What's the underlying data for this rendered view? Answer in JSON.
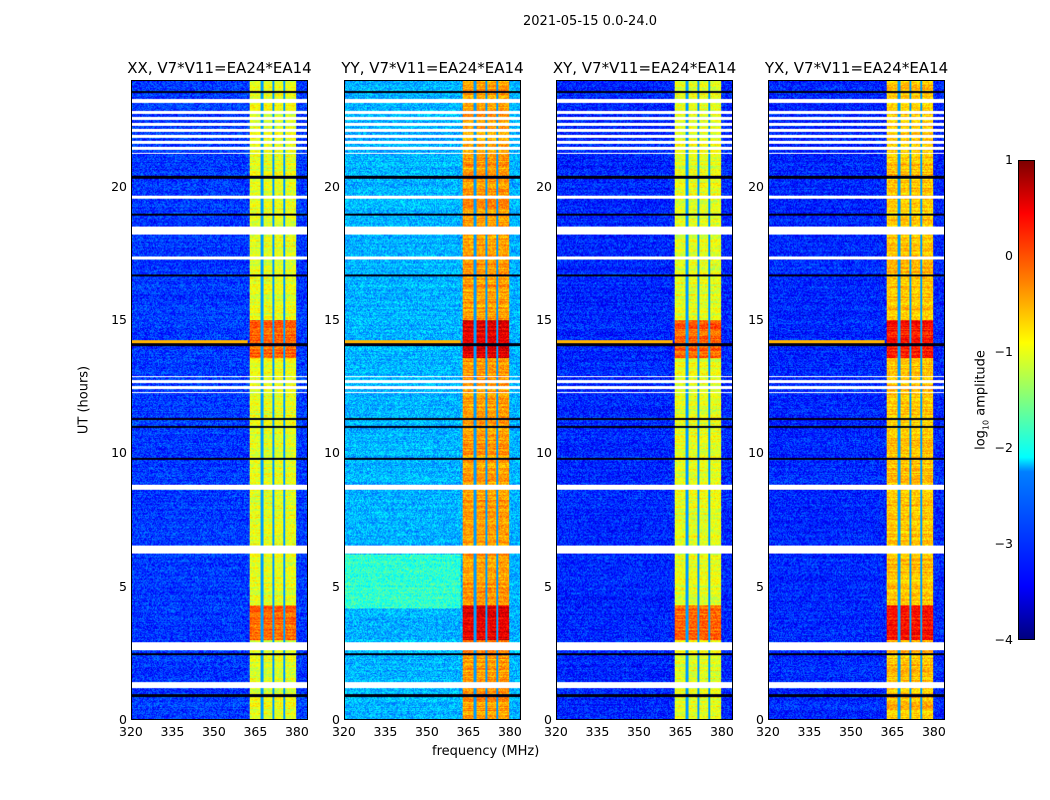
{
  "suptitle": "2021-05-15 0.0-24.0",
  "chart_data": {
    "type": "heatmap",
    "xlabel": "frequency (MHz)",
    "ylabel": "UT (hours)",
    "xlim": [
      320,
      384
    ],
    "ylim": [
      0,
      24
    ],
    "xticks": [
      320,
      335,
      350,
      365,
      380
    ],
    "yticks": [
      0,
      5,
      10,
      15,
      20
    ],
    "colorbar": {
      "label_main": "log",
      "label_sub": "10",
      "label_rest": " amplitude",
      "range": [
        -4,
        1
      ],
      "ticks": [
        1,
        0,
        -1,
        -2,
        -3,
        -4
      ],
      "colormap": "jet"
    },
    "panels": [
      {
        "title": "XX, V7*V11=EA24*EA14",
        "background_level": -3.1,
        "band_level": -1.0
      },
      {
        "title": "YY, V7*V11=EA24*EA14",
        "background_level": -2.5,
        "band_level": -0.4
      },
      {
        "title": "XY, V7*V11=EA24*EA14",
        "background_level": -3.2,
        "band_level": -1.0
      },
      {
        "title": "YX, V7*V11=EA24*EA14",
        "background_level": -3.2,
        "band_level": -0.6
      }
    ],
    "band_mhz": [
      363,
      380
    ],
    "rfi_band_peak_hours": [
      [
        3,
        4.3
      ],
      [
        13.6,
        15
      ]
    ],
    "flagged_hours": [
      [
        1.2,
        1.4
      ],
      [
        2.6,
        2.9
      ],
      [
        6.25,
        6.55
      ],
      [
        8.65,
        8.85
      ],
      [
        12.3,
        12.9
      ],
      [
        17.3,
        17.4
      ],
      [
        18.25,
        18.55
      ],
      [
        19.6,
        19.7
      ],
      [
        21.3,
        22.9
      ],
      [
        23.2,
        23.35
      ]
    ],
    "dark_lines_hours": [
      0.9,
      2.45,
      9.8,
      11.0,
      11.3,
      14.1,
      16.7,
      19.0,
      20.4,
      23.6
    ]
  }
}
